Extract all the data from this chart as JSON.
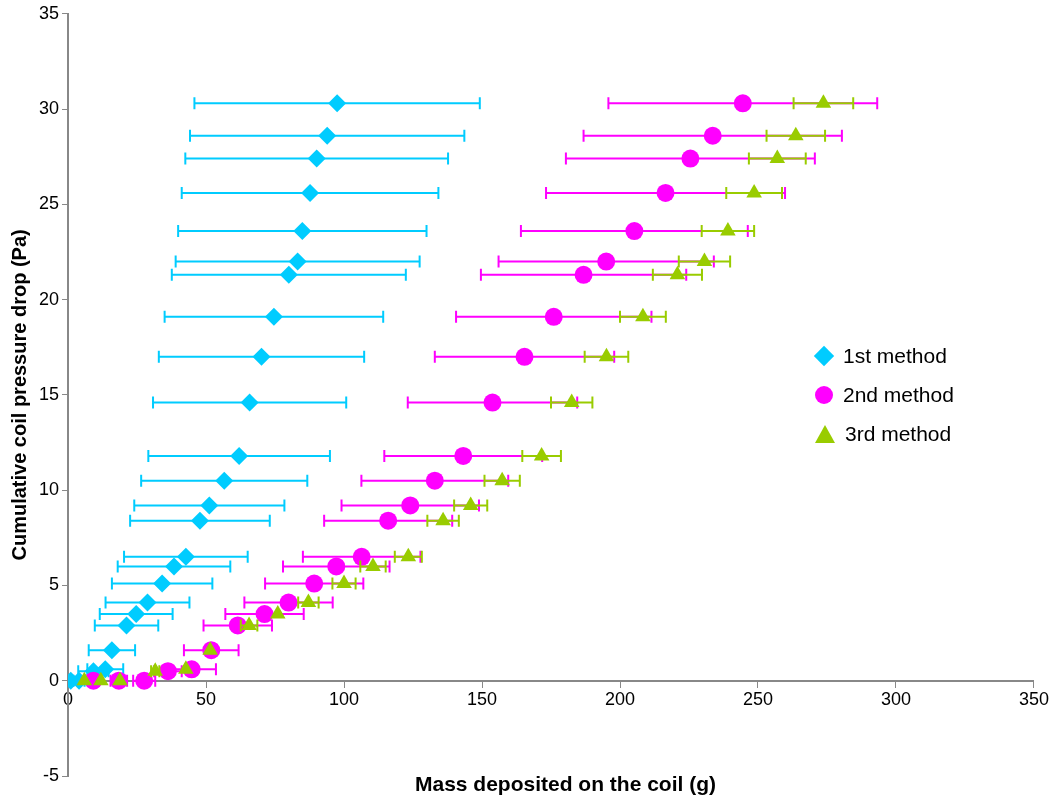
{
  "chart_data": {
    "type": "scatter",
    "xlabel": "Mass deposited on the coil (g)",
    "ylabel": "Cumulative coil pressure drop (Pa)",
    "xlim": [
      0,
      350
    ],
    "xticks": [
      0,
      50,
      100,
      150,
      200,
      250,
      300,
      350
    ],
    "ylim": [
      -5,
      35
    ],
    "yticks": [
      -5,
      0,
      5,
      10,
      15,
      20,
      25,
      30,
      35
    ],
    "grid": false,
    "legend": "right",
    "series": [
      {
        "name": "1st method",
        "color": "#00ccff",
        "marker": "diamond",
        "x": [
          97.5,
          93.9,
          90.1,
          87.7,
          84.9,
          83.2,
          80.0,
          74.6,
          70.1,
          65.8,
          62.0,
          56.6,
          51.2,
          47.8,
          42.7,
          38.4,
          34.1,
          28.8,
          24.7,
          21.2,
          15.9,
          13.5,
          9.2,
          4,
          1
        ],
        "values": [
          30.3,
          28.6,
          27.4,
          25.6,
          23.6,
          22.0,
          21.3,
          19.1,
          17.0,
          14.6,
          11.8,
          10.5,
          9.2,
          8.4,
          6.5,
          6.0,
          5.1,
          4.1,
          3.5,
          2.9,
          1.6,
          0.6,
          0.5,
          0,
          0
        ],
        "xerrors": [
          51.7,
          49.7,
          47.6,
          46.5,
          45,
          44.2,
          42.4,
          39.6,
          37.2,
          35,
          32.9,
          30.1,
          27.2,
          25.3,
          22.4,
          20.4,
          18.2,
          15.2,
          13.2,
          11.5,
          8.4,
          6.5,
          5.5,
          2,
          null
        ]
      },
      {
        "name": "2nd method",
        "color": "#ff00ff",
        "marker": "circle",
        "x": [
          244.5,
          233.6,
          225.5,
          216.5,
          205.2,
          195.0,
          186.8,
          176.0,
          165.4,
          153.8,
          143.2,
          132.9,
          124.0,
          116.0,
          106.4,
          97.2,
          89.2,
          79.9,
          71.2,
          61.5,
          51.9,
          44.8,
          36.2,
          27.6,
          18.4,
          9.2
        ],
        "values": [
          30.3,
          28.6,
          27.4,
          25.6,
          23.6,
          22.0,
          21.3,
          19.1,
          17.0,
          14.6,
          11.8,
          10.5,
          9.2,
          8.4,
          6.5,
          6.0,
          5.1,
          4.1,
          3.5,
          2.9,
          1.6,
          0.6,
          0.5,
          0,
          0,
          0
        ],
        "xerrors": [
          48.7,
          46.8,
          45.1,
          43.3,
          41.1,
          39,
          37.2,
          35.4,
          32.5,
          30.7,
          28.6,
          26.6,
          24.9,
          23.2,
          21.3,
          19.3,
          17.8,
          16,
          14.2,
          12.4,
          9.9,
          8.8,
          5,
          4,
          3,
          2
        ]
      },
      {
        "name": "3rd method",
        "color": "#99cc00",
        "marker": "triangle",
        "x": [
          273.7,
          263.7,
          257.0,
          248.6,
          239.1,
          230.6,
          220.8,
          208.3,
          195.1,
          182.5,
          171.6,
          157.3,
          145.9,
          135.9,
          123.3,
          110.5,
          100.0,
          87.1,
          76.0,
          65.6,
          51.5,
          42.7,
          31.6,
          18.8,
          11.9,
          5.9
        ],
        "values": [
          30.3,
          28.6,
          27.4,
          25.6,
          23.6,
          22.0,
          21.3,
          19.1,
          17.0,
          14.6,
          11.8,
          10.5,
          9.2,
          8.4,
          6.5,
          6.0,
          5.1,
          4.1,
          3.5,
          2.9,
          1.6,
          0.6,
          0.5,
          0,
          0,
          0
        ],
        "xerrors": [
          10.8,
          10.6,
          10.3,
          10.1,
          9.5,
          9.3,
          8.9,
          8.3,
          7.9,
          7.5,
          7,
          6.4,
          6,
          5.7,
          4.9,
          4.6,
          4.2,
          3.7,
          null,
          3,
          null,
          null,
          1.5,
          null,
          null,
          null
        ]
      }
    ]
  }
}
